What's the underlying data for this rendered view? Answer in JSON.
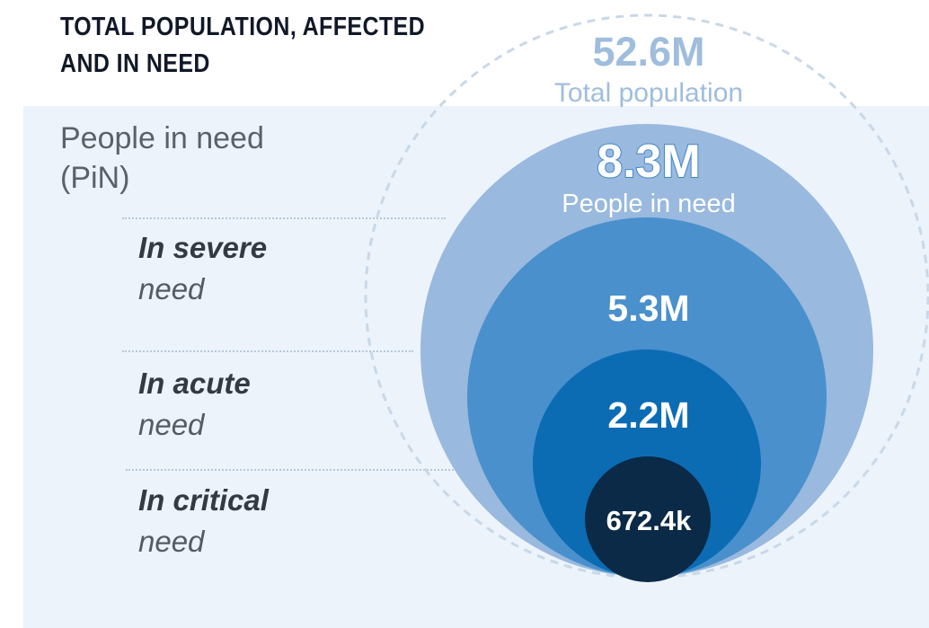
{
  "title": "TOTAL POPULATION, AFFECTED AND IN NEED",
  "pin_label": "People in need (PiN)",
  "categories": [
    {
      "emph": "In severe",
      "rest": "need"
    },
    {
      "emph": "In acute",
      "rest": "need"
    },
    {
      "emph": "In critical",
      "rest": "need"
    }
  ],
  "circles": [
    {
      "value": "52.6M",
      "caption": "Total population",
      "color": "#a3bfdc"
    },
    {
      "value": "8.3M",
      "caption": "People in need",
      "color": "#99b9de"
    },
    {
      "value": "5.3M",
      "caption": "",
      "color": "#4a90cc"
    },
    {
      "value": "2.2M",
      "caption": "",
      "color": "#0b6cb4"
    },
    {
      "value": "672.4k",
      "caption": "",
      "color": "#0b2a47"
    }
  ],
  "colors": {
    "panel": "#ecf3fa",
    "dashed_ring": "#c9d8e8",
    "title": "#111827",
    "label": "#555b63"
  }
}
